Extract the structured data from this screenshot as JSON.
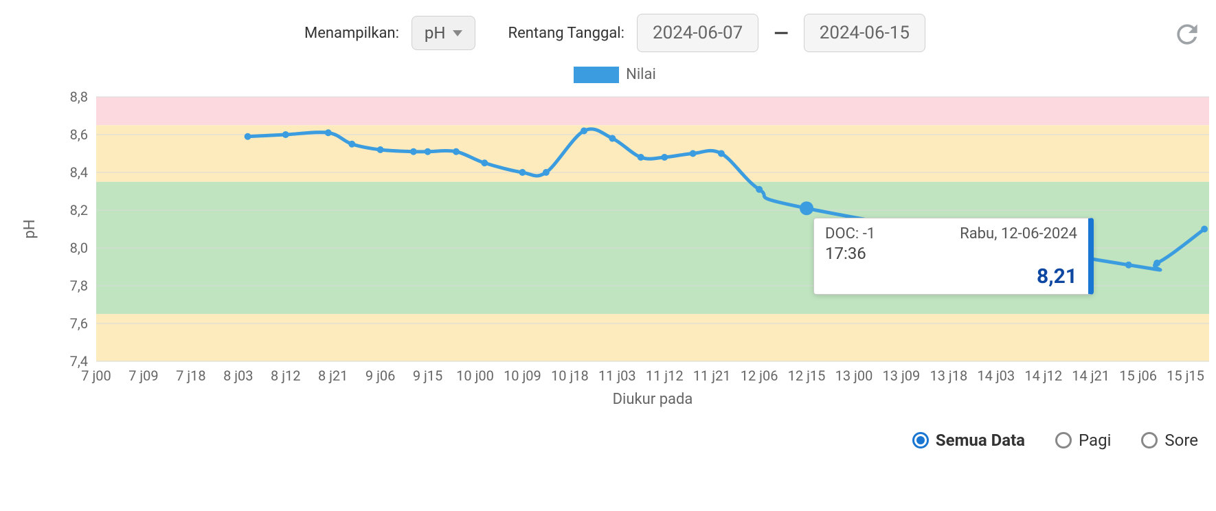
{
  "controls": {
    "showing_label": "Menampilkan:",
    "showing_value": "pH",
    "range_label": "Rentang Tanggal:",
    "date_start": "2024-06-07",
    "date_end": "2024-06-15",
    "dash": "—"
  },
  "legend": {
    "label": "Nilai",
    "color": "#3b9ddf"
  },
  "chart": {
    "type": "line",
    "y_title": "pH",
    "x_title": "Diukur pada",
    "ylim": [
      7.4,
      8.8
    ],
    "ytick_step": 0.2,
    "ytick_labels": [
      "7,4",
      "7,6",
      "7,8",
      "8,0",
      "8,2",
      "8,4",
      "8,6",
      "8,8"
    ],
    "xtick_labels": [
      "7 j00",
      "7 j09",
      "7 j18",
      "8 j03",
      "8 j12",
      "8 j21",
      "9 j06",
      "9 j15",
      "10 j00",
      "10 j09",
      "10 j18",
      "11 j03",
      "11 j12",
      "11 j21",
      "12 j06",
      "12 j15",
      "13 j00",
      "13 j09",
      "13 j18",
      "14 j03",
      "14 j12",
      "14 j21",
      "15 j06",
      "15 j15"
    ],
    "bands": [
      {
        "from": 8.65,
        "to": 8.8,
        "color": "#fbd9df"
      },
      {
        "from": 8.35,
        "to": 8.65,
        "color": "#fdebbd"
      },
      {
        "from": 7.65,
        "to": 8.35,
        "color": "#c0e4c0"
      },
      {
        "from": 7.4,
        "to": 7.65,
        "color": "#fdebbd"
      }
    ],
    "grid_color": "#d9d9d9",
    "line_color": "#3b9ddf",
    "line_width": 5,
    "marker_color": "#3b9ddf",
    "marker_radius": 5,
    "highlight_marker_radius": 10,
    "background": "#ffffff",
    "series": [
      {
        "xi": 3.2,
        "y": 8.59
      },
      {
        "xi": 4.0,
        "y": 8.6
      },
      {
        "xi": 4.9,
        "y": 8.61
      },
      {
        "xi": 5.4,
        "y": 8.55
      },
      {
        "xi": 6.0,
        "y": 8.52
      },
      {
        "xi": 6.7,
        "y": 8.51
      },
      {
        "xi": 7.0,
        "y": 8.51
      },
      {
        "xi": 7.6,
        "y": 8.51
      },
      {
        "xi": 8.2,
        "y": 8.45
      },
      {
        "xi": 9.0,
        "y": 8.4
      },
      {
        "xi": 9.5,
        "y": 8.4
      },
      {
        "xi": 10.3,
        "y": 8.62
      },
      {
        "xi": 10.9,
        "y": 8.58
      },
      {
        "xi": 11.5,
        "y": 8.48
      },
      {
        "xi": 12.0,
        "y": 8.48
      },
      {
        "xi": 12.6,
        "y": 8.5
      },
      {
        "xi": 13.2,
        "y": 8.5
      },
      {
        "xi": 14.0,
        "y": 8.31
      },
      {
        "xi": 15.0,
        "y": 8.21,
        "highlight": true
      },
      {
        "xi": 21.8,
        "y": 7.91
      },
      {
        "xi": 22.4,
        "y": 7.92
      },
      {
        "xi": 23.4,
        "y": 8.1
      }
    ],
    "tooltip": {
      "doc_label": "DOC: -1",
      "date": "Rabu, 12-06-2024",
      "time": "17:36",
      "value": "8,21",
      "at_xi": 15.0,
      "at_y": 8.21
    }
  },
  "filters": {
    "options": [
      {
        "label": "Semua Data",
        "selected": true
      },
      {
        "label": "Pagi",
        "selected": false
      },
      {
        "label": "Sore",
        "selected": false
      }
    ]
  },
  "colors": {
    "accent": "#1976d2",
    "text_muted": "#666666"
  }
}
